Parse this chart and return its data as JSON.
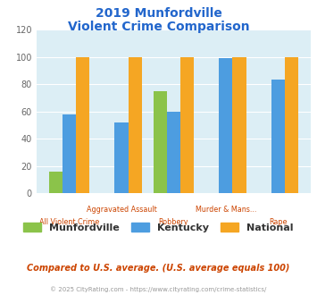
{
  "title_line1": "2019 Munfordville",
  "title_line2": "Violent Crime Comparison",
  "categories_top": [
    "Aggravated Assault",
    "Murder & Mans..."
  ],
  "categories_bot": [
    "All Violent Crime",
    "Robbery",
    "Rape"
  ],
  "munfordville": [
    16,
    0,
    75,
    0,
    0
  ],
  "kentucky": [
    58,
    52,
    60,
    99,
    83
  ],
  "national": [
    100,
    100,
    100,
    100,
    100
  ],
  "munfordville_color": "#8bc34a",
  "kentucky_color": "#4d9de0",
  "national_color": "#f5a623",
  "ylim": [
    0,
    120
  ],
  "yticks": [
    0,
    20,
    40,
    60,
    80,
    100,
    120
  ],
  "plot_bg": "#dceef5",
  "footer_text": "Compared to U.S. average. (U.S. average equals 100)",
  "copyright_text": "© 2025 CityRating.com - https://www.cityrating.com/crime-statistics/",
  "title_color": "#2266cc",
  "footer_color": "#cc4400",
  "copyright_color": "#999999",
  "xtick_color": "#cc4400",
  "ytick_color": "#666666",
  "grid_color": "#ffffff",
  "legend_text_color": "#333333"
}
